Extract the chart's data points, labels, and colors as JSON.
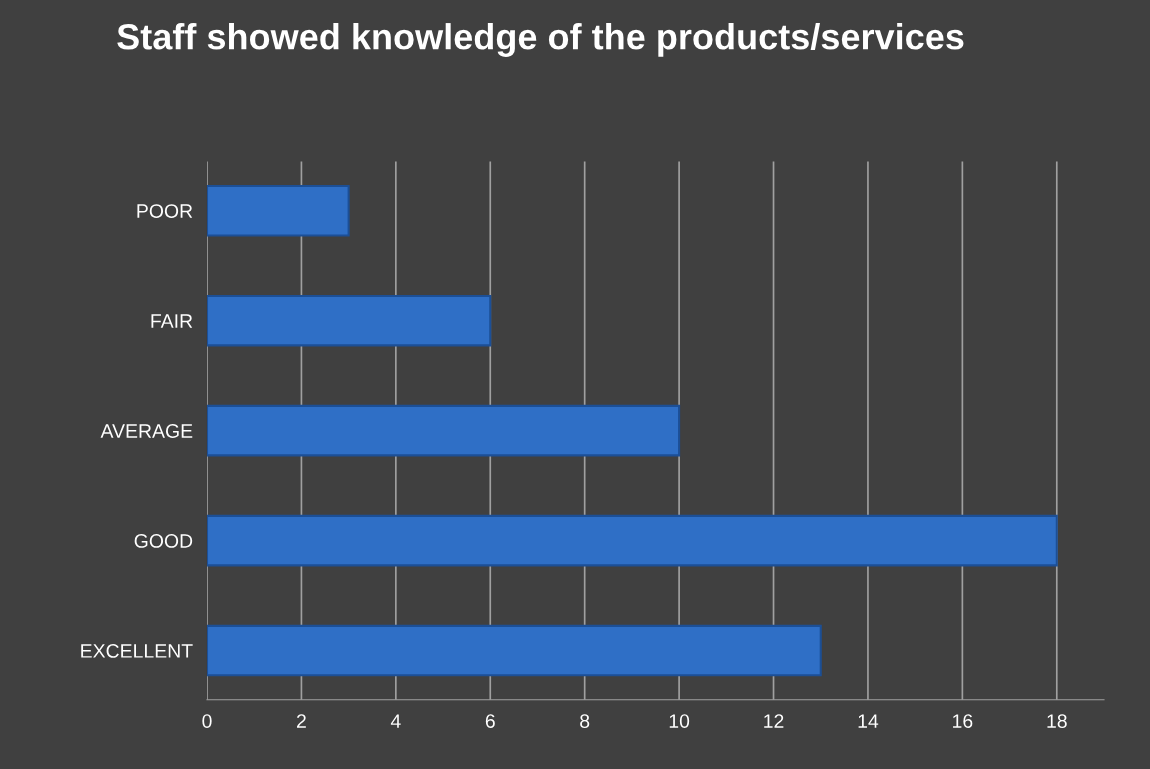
{
  "chart_data": {
    "type": "bar",
    "orientation": "horizontal",
    "title": "Staff showed knowledge of the products/services",
    "categories": [
      "POOR",
      "FAIR",
      "AVERAGE",
      "GOOD",
      "EXCELLENT"
    ],
    "values": [
      3,
      6,
      10,
      18,
      13
    ],
    "color": "#2f6fc6",
    "xlim": [
      0,
      19
    ],
    "xticks": [
      0,
      2,
      4,
      6,
      8,
      10,
      12,
      14,
      16,
      18
    ],
    "grid": "x"
  }
}
